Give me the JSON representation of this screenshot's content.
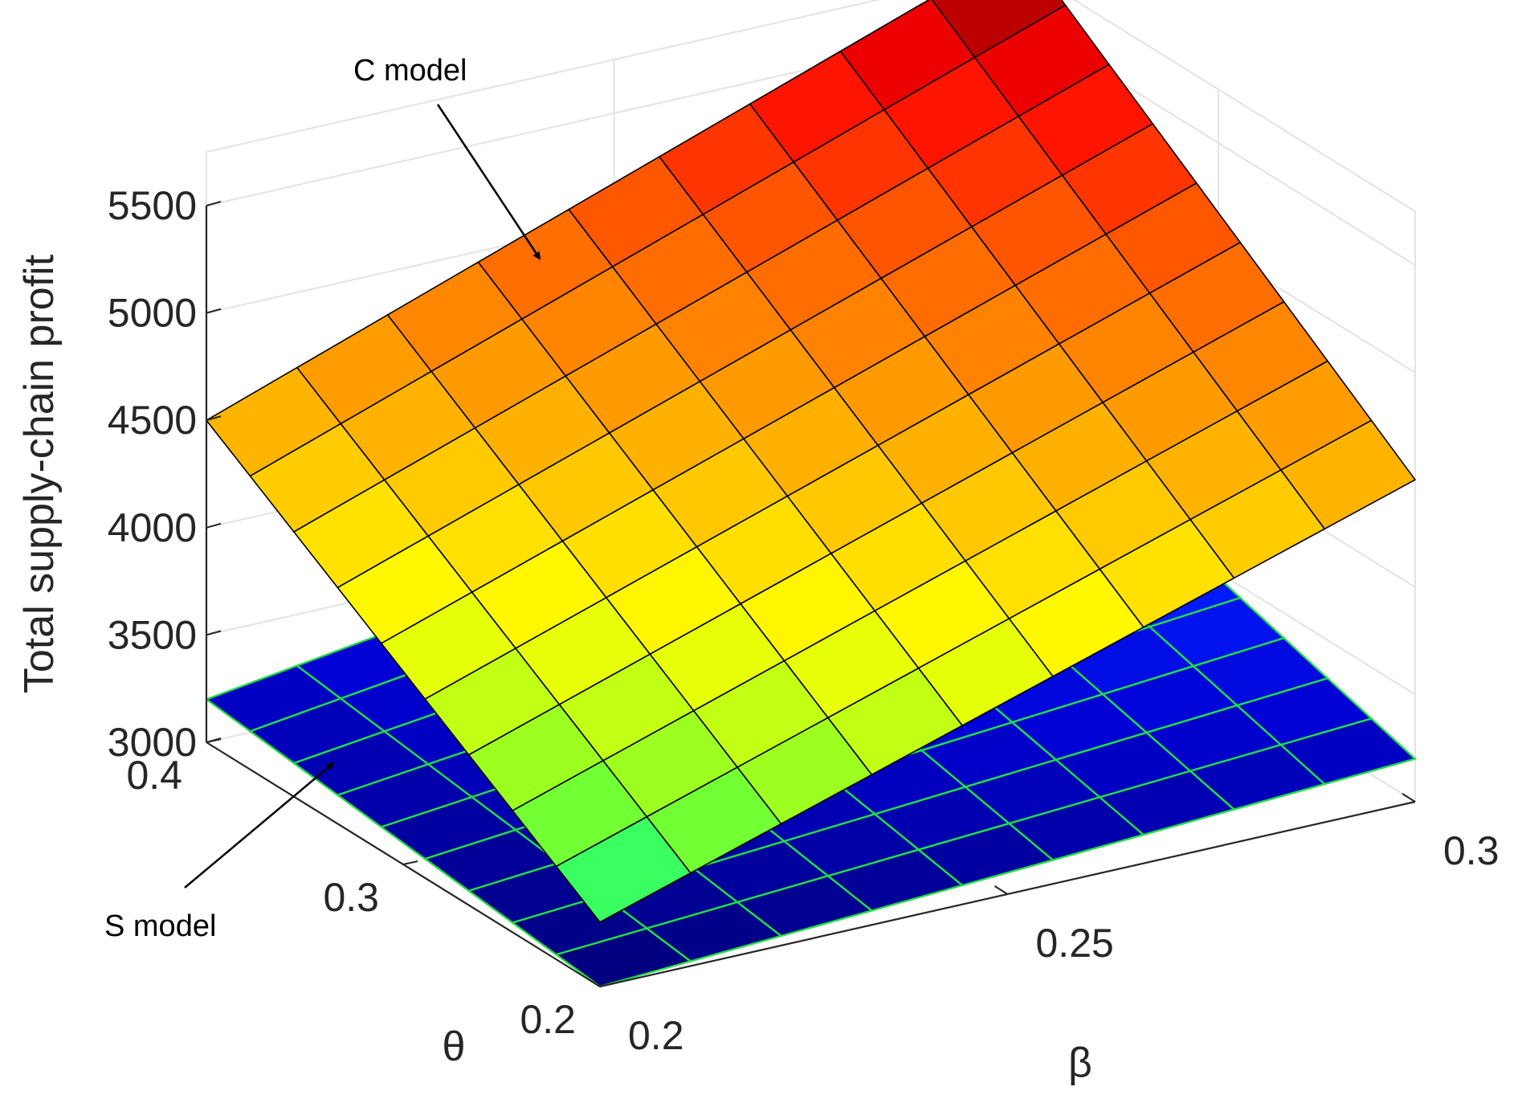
{
  "chart_data": {
    "type": "surface",
    "title": "",
    "xlabel": "β",
    "ylabel": "θ",
    "zlabel": "Total supply-chain profit",
    "x_ticks": [
      "0.2",
      "0.25",
      "0.3"
    ],
    "y_ticks": [
      "0.2",
      "0.3",
      "0.4"
    ],
    "z_ticks": [
      "3000",
      "3500",
      "4000",
      "4500",
      "5000",
      "5500"
    ],
    "xlim": [
      0.2,
      0.3
    ],
    "ylim": [
      0.2,
      0.4
    ],
    "zlim": [
      3000,
      5500
    ],
    "grid": true,
    "grid_size": [
      9,
      9
    ],
    "series": [
      {
        "name": "C model",
        "colormap": "jet-upper",
        "edge_color": "#000000",
        "corner_values": {
          "beta0.2_theta0.2": 3300,
          "beta0.3_theta0.2": 4500,
          "beta0.2_theta0.4": 4500,
          "beta0.3_theta0.4": 5850
        }
      },
      {
        "name": "S model",
        "colormap": "jet-lower",
        "edge_color": "#22dd44",
        "corner_values": {
          "beta0.2_theta0.2": 3000,
          "beta0.3_theta0.2": 3200,
          "beta0.2_theta0.4": 3200,
          "beta0.3_theta0.4": 3750
        }
      }
    ],
    "annotations": [
      {
        "text": "C model",
        "points_to": "C model"
      },
      {
        "text": "S model",
        "points_to": "S model"
      }
    ]
  }
}
